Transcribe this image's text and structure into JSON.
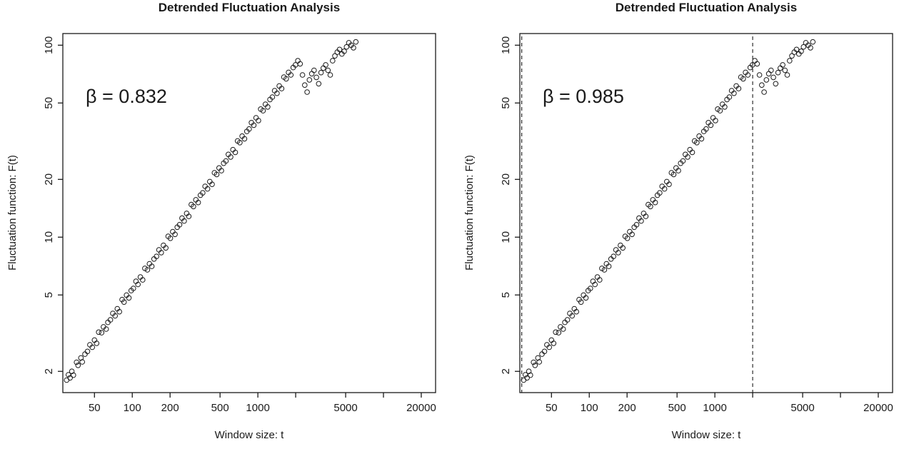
{
  "colors": {
    "background": "#ffffff",
    "axis": "#1a1a1a",
    "marker": "#1a1a1a"
  },
  "chart_data": [
    {
      "type": "scatter",
      "title": "Detrended Fluctuation Analysis",
      "xlabel": "Window size: t",
      "ylabel": "Fluctuation function: F(t)",
      "annotation": "β = 0.832",
      "x_scale": "log",
      "y_scale": "log",
      "xlim": [
        28,
        26000
      ],
      "ylim": [
        1.55,
        115
      ],
      "grid": false,
      "legend": "none",
      "marker": {
        "shape": "open-circle",
        "color": "#1a1a1a"
      },
      "x_ticks": [
        {
          "v": 50,
          "label": "50"
        },
        {
          "v": 100,
          "label": "100"
        },
        {
          "v": 200,
          "label": "200"
        },
        {
          "v": 500,
          "label": "500"
        },
        {
          "v": 1000,
          "label": "1000"
        },
        {
          "v": 2000,
          "label": ""
        },
        {
          "v": 5000,
          "label": "5000"
        },
        {
          "v": 10000,
          "label": ""
        },
        {
          "v": 20000,
          "label": "20000"
        }
      ],
      "y_ticks": [
        {
          "v": 2,
          "label": "2"
        },
        {
          "v": 5,
          "label": "5"
        },
        {
          "v": 10,
          "label": "10"
        },
        {
          "v": 20,
          "label": "20"
        },
        {
          "v": 50,
          "label": "50"
        },
        {
          "v": 100,
          "label": "100"
        }
      ],
      "vlines": [],
      "points": [
        [
          30,
          1.8
        ],
        [
          31,
          1.92
        ],
        [
          32,
          1.85
        ],
        [
          33,
          2.0
        ],
        [
          34,
          1.91
        ],
        [
          36,
          2.23
        ],
        [
          37,
          2.15
        ],
        [
          39,
          2.35
        ],
        [
          40,
          2.24
        ],
        [
          42,
          2.46
        ],
        [
          44,
          2.54
        ],
        [
          46,
          2.75
        ],
        [
          48,
          2.67
        ],
        [
          50,
          2.91
        ],
        [
          52,
          2.8
        ],
        [
          54,
          3.2
        ],
        [
          57,
          3.18
        ],
        [
          59,
          3.41
        ],
        [
          62,
          3.32
        ],
        [
          64,
          3.6
        ],
        [
          67,
          3.71
        ],
        [
          70,
          4.01
        ],
        [
          73,
          3.89
        ],
        [
          76,
          4.24
        ],
        [
          79,
          4.09
        ],
        [
          83,
          4.73
        ],
        [
          86,
          4.59
        ],
        [
          90,
          4.99
        ],
        [
          94,
          4.83
        ],
        [
          98,
          5.27
        ],
        [
          102,
          5.41
        ],
        [
          107,
          5.89
        ],
        [
          111,
          5.67
        ],
        [
          116,
          6.2
        ],
        [
          121,
          5.99
        ],
        [
          126,
          6.88
        ],
        [
          132,
          6.76
        ],
        [
          137,
          7.27
        ],
        [
          143,
          7.05
        ],
        [
          149,
          7.7
        ],
        [
          156,
          7.94
        ],
        [
          163,
          8.59
        ],
        [
          170,
          8.31
        ],
        [
          177,
          9.07
        ],
        [
          185,
          8.79
        ],
        [
          193,
          10.1
        ],
        [
          201,
          9.87
        ],
        [
          210,
          10.68
        ],
        [
          219,
          10.34
        ],
        [
          228,
          11.27
        ],
        [
          238,
          11.61
        ],
        [
          249,
          12.56
        ],
        [
          259,
          12.14
        ],
        [
          271,
          13.31
        ],
        [
          282,
          12.84
        ],
        [
          295,
          14.78
        ],
        [
          307,
          14.45
        ],
        [
          321,
          15.65
        ],
        [
          335,
          15.16
        ],
        [
          349,
          16.55
        ],
        [
          364,
          17.01
        ],
        [
          380,
          18.4
        ],
        [
          397,
          17.85
        ],
        [
          414,
          19.48
        ],
        [
          432,
          18.85
        ],
        [
          451,
          21.66
        ],
        [
          470,
          21.22
        ],
        [
          491,
          22.93
        ],
        [
          512,
          22.2
        ],
        [
          534,
          24.26
        ],
        [
          557,
          24.94
        ],
        [
          582,
          26.98
        ],
        [
          607,
          26.16
        ],
        [
          633,
          28.55
        ],
        [
          661,
          27.67
        ],
        [
          689,
          31.73
        ],
        [
          719,
          31.08
        ],
        [
          750,
          33.59
        ],
        [
          783,
          32.55
        ],
        [
          817,
          35.57
        ],
        [
          852,
          36.59
        ],
        [
          889,
          39.52
        ],
        [
          928,
          38.32
        ],
        [
          968,
          41.87
        ],
        [
          1010,
          40.51
        ],
        [
          1054,
          46.5
        ],
        [
          1100,
          45.59
        ],
        [
          1148,
          49.28
        ],
        [
          1197,
          47.7
        ],
        [
          1249,
          52.14
        ],
        [
          1304,
          53.67
        ],
        [
          1360,
          57.98
        ],
        [
          1419,
          56.17
        ],
        [
          1481,
          61.36
        ],
        [
          1545,
          59.43
        ],
        [
          1612,
          68.23
        ],
        [
          1682,
          66.83
        ],
        [
          1755,
          72.21
        ],
        [
          1831,
          69.98
        ],
        [
          1911,
          76.48
        ],
        [
          1994,
          79
        ],
        [
          2080,
          83
        ],
        [
          2171,
          80
        ],
        [
          2265,
          70
        ],
        [
          2363,
          62
        ],
        [
          2466,
          57
        ],
        [
          2573,
          66
        ],
        [
          2685,
          71
        ],
        [
          2801,
          74
        ],
        [
          2923,
          68
        ],
        [
          3050,
          63
        ],
        [
          3183,
          72
        ],
        [
          3321,
          76
        ],
        [
          3465,
          79
        ],
        [
          3616,
          74
        ],
        [
          3772,
          70
        ],
        [
          3936,
          83
        ],
        [
          4107,
          88
        ],
        [
          4285,
          92
        ],
        [
          4471,
          95
        ],
        [
          4665,
          90
        ],
        [
          4868,
          93
        ],
        [
          5079,
          98
        ],
        [
          5300,
          103
        ],
        [
          5530,
          100
        ],
        [
          5770,
          97
        ],
        [
          6021,
          104
        ]
      ]
    },
    {
      "type": "scatter",
      "title": "Detrended Fluctuation Analysis",
      "xlabel": "Window size: t",
      "ylabel": "Fluctuation function: F(t)",
      "annotation": "β = 0.985",
      "x_scale": "log",
      "y_scale": "log",
      "xlim": [
        28,
        26000
      ],
      "ylim": [
        1.55,
        115
      ],
      "grid": false,
      "legend": "none",
      "marker": {
        "shape": "open-circle",
        "color": "#1a1a1a"
      },
      "x_ticks": [
        {
          "v": 50,
          "label": "50"
        },
        {
          "v": 100,
          "label": "100"
        },
        {
          "v": 200,
          "label": "200"
        },
        {
          "v": 500,
          "label": "500"
        },
        {
          "v": 1000,
          "label": "1000"
        },
        {
          "v": 2000,
          "label": ""
        },
        {
          "v": 5000,
          "label": "5000"
        },
        {
          "v": 10000,
          "label": ""
        },
        {
          "v": 20000,
          "label": "20000"
        }
      ],
      "y_ticks": [
        {
          "v": 2,
          "label": "2"
        },
        {
          "v": 5,
          "label": "5"
        },
        {
          "v": 10,
          "label": "10"
        },
        {
          "v": 20,
          "label": "20"
        },
        {
          "v": 50,
          "label": "50"
        },
        {
          "v": 100,
          "label": "100"
        }
      ],
      "vlines": [
        29,
        2000
      ],
      "points_same_as": 0
    }
  ]
}
